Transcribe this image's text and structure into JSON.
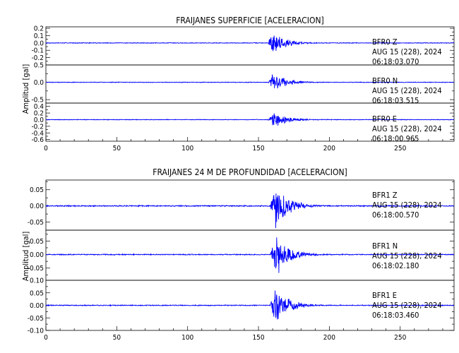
{
  "figure": {
    "trace_color": "#0000ff"
  },
  "chart_data": [
    {
      "type": "line",
      "title": "FRAIJANES SUPERFICIE [ACELERACION]",
      "ylabel": "Amplitud [gal]",
      "xlim": [
        0,
        288
      ],
      "xticks": [
        "0",
        "50",
        "100",
        "150",
        "200",
        "250"
      ],
      "panels": [
        {
          "station": "BFR0",
          "component": "Z",
          "label": "BFR0 Z",
          "date": "AUG 15 (228), 2024",
          "time": "06:18:03.070",
          "ylim": [
            -0.3,
            0.22
          ],
          "yticks": [
            "0.2",
            "0.1",
            "0.0",
            "-0.1",
            "-0.2"
          ],
          "ytick_values": [
            0.2,
            0.1,
            0.0,
            -0.1,
            -0.2
          ],
          "event_onset_s": 157,
          "peak_time_s": 159,
          "peak_amplitude": 0.2,
          "pre_event_noise": 0.005
        },
        {
          "station": "BFR0",
          "component": "N",
          "label": "BFR0 N",
          "date": "AUG 15 (228), 2024",
          "time": "06:18:03.515",
          "ylim": [
            -0.6,
            0.5
          ],
          "yticks": [
            "0.5",
            "0.0",
            "-0.5"
          ],
          "ytick_values": [
            0.5,
            0.0,
            -0.5
          ],
          "event_onset_s": 157,
          "peak_time_s": 160,
          "peak_amplitude": 0.35,
          "pre_event_noise": 0.01
        },
        {
          "station": "BFR0",
          "component": "E",
          "label": "BFR0 E",
          "date": "AUG 15 (228), 2024",
          "time": "06:18:00.965",
          "ylim": [
            -0.65,
            0.5
          ],
          "yticks": [
            "0.4",
            "0.2",
            "0.0",
            "-0.2",
            "-0.4",
            "-0.6"
          ],
          "ytick_values": [
            0.4,
            0.2,
            0.0,
            -0.2,
            -0.4,
            -0.6
          ],
          "event_onset_s": 157,
          "peak_time_s": 160,
          "peak_amplitude": 0.3,
          "pre_event_noise": 0.01
        }
      ]
    },
    {
      "type": "line",
      "title": "FRAIJANES 24 M DE PROFUNDIDAD [ACELERACION]",
      "ylabel": "Amplitud [gal]",
      "xlim": [
        0,
        288
      ],
      "xticks": [
        "0",
        "50",
        "100",
        "150",
        "200",
        "250"
      ],
      "panels": [
        {
          "station": "BFR1",
          "component": "Z",
          "label": "BFR1 Z",
          "date": "AUG 15 (228), 2024",
          "time": "06:18:00.570",
          "ylim": [
            -0.075,
            0.08
          ],
          "yticks": [
            "0.05",
            "0.00",
            "-0.05"
          ],
          "ytick_values": [
            0.05,
            0.0,
            -0.05
          ],
          "event_onset_s": 158,
          "peak_time_s": 162,
          "peak_amplitude": 0.075,
          "pre_event_noise": 0.002
        },
        {
          "station": "BFR1",
          "component": "N",
          "label": "BFR1 N",
          "date": "AUG 15 (228), 2024",
          "time": "06:18:02.180",
          "ylim": [
            -0.095,
            0.09
          ],
          "yticks": [
            "0.05",
            "0.00",
            "-0.05"
          ],
          "ytick_values": [
            0.05,
            0.0,
            -0.05
          ],
          "event_onset_s": 158,
          "peak_time_s": 163,
          "peak_amplitude": 0.08,
          "pre_event_noise": 0.002
        },
        {
          "station": "BFR1",
          "component": "E",
          "label": "BFR1 E",
          "date": "AUG 15 (228), 2024",
          "time": "06:18:03.460",
          "ylim": [
            -0.1,
            0.1
          ],
          "yticks": [
            "0.10",
            "0.05",
            "0.00",
            "-0.05",
            "-0.10"
          ],
          "ytick_values": [
            0.1,
            0.05,
            0.0,
            -0.05,
            -0.1
          ],
          "event_onset_s": 158,
          "peak_time_s": 162,
          "peak_amplitude": 0.085,
          "pre_event_noise": 0.002
        }
      ]
    }
  ]
}
